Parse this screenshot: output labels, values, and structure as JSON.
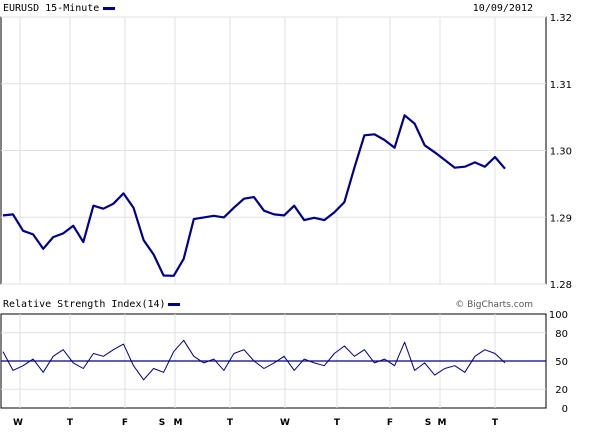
{
  "chart_data": [
    {
      "type": "line",
      "title": "EURUSD 15-Minute",
      "date": "10/09/2012",
      "xlabel": "",
      "ylabel": "",
      "ylim": [
        1.28,
        1.32
      ],
      "y_ticks": [
        "1.32",
        "1.31",
        "1.30",
        "1.29",
        "1.28"
      ],
      "grid": true,
      "legend_placement": "top-left",
      "color": "#00008b",
      "series": [
        {
          "name": "EURUSD 15-Minute",
          "x": [
            0,
            2,
            4,
            6,
            8,
            10,
            12,
            14,
            16,
            18,
            20,
            22,
            24,
            26,
            28,
            30,
            32,
            34,
            36,
            38,
            40,
            42,
            44,
            46,
            48,
            50,
            52,
            54,
            56,
            58,
            60,
            62,
            64,
            66,
            68,
            70,
            72,
            74,
            76,
            78,
            80,
            82,
            84,
            86,
            88,
            90,
            92,
            94,
            96,
            98,
            100
          ],
          "values": [
            1.2905,
            1.2902,
            1.2882,
            1.2872,
            1.2855,
            1.2868,
            1.2878,
            1.2885,
            1.2865,
            1.2915,
            1.2915,
            1.2918,
            1.2938,
            1.2912,
            1.2868,
            1.2842,
            1.2815,
            1.281,
            1.284,
            1.2895,
            1.2902,
            1.29,
            1.2902,
            1.2912,
            1.293,
            1.2928,
            1.2912,
            1.2902,
            1.2905,
            1.2915,
            1.2898,
            1.2897,
            1.2898,
            1.2905,
            1.2925,
            1.2972,
            1.3025,
            1.3022,
            1.3018,
            1.3002,
            1.3055,
            1.3038,
            1.301,
            1.2995,
            1.2988,
            1.2972,
            1.2978,
            1.298,
            1.2978,
            1.2988,
            1.2975
          ]
        }
      ]
    },
    {
      "type": "line",
      "title": "Relative Strength Index(14)",
      "ylim": [
        0,
        100
      ],
      "y_ticks": [
        "100",
        "80",
        "50",
        "20",
        "0"
      ],
      "reference_line": 50,
      "grid": true,
      "color": "#00008b",
      "series": [
        {
          "name": "Relative Strength Index(14)",
          "x": [
            0,
            2,
            4,
            6,
            8,
            10,
            12,
            14,
            16,
            18,
            20,
            22,
            24,
            26,
            28,
            30,
            32,
            34,
            36,
            38,
            40,
            42,
            44,
            46,
            48,
            50,
            52,
            54,
            56,
            58,
            60,
            62,
            64,
            66,
            68,
            70,
            72,
            74,
            76,
            78,
            80,
            82,
            84,
            86,
            88,
            90,
            92,
            94,
            96,
            98,
            100
          ],
          "values": [
            60,
            40,
            45,
            52,
            38,
            55,
            62,
            48,
            42,
            58,
            55,
            62,
            68,
            45,
            30,
            42,
            38,
            60,
            72,
            55,
            48,
            52,
            40,
            58,
            62,
            50,
            42,
            48,
            55,
            40,
            52,
            48,
            45,
            58,
            66,
            55,
            62,
            48,
            52,
            45,
            70,
            40,
            48,
            35,
            42,
            45,
            38,
            55,
            62,
            58,
            48
          ]
        }
      ],
      "x_day_labels": [
        "W",
        "T",
        "F",
        "S",
        "M",
        "T",
        "W",
        "T",
        "F",
        "S",
        "M",
        "T"
      ]
    }
  ],
  "footer": {
    "credit": "© BigCharts.com"
  }
}
